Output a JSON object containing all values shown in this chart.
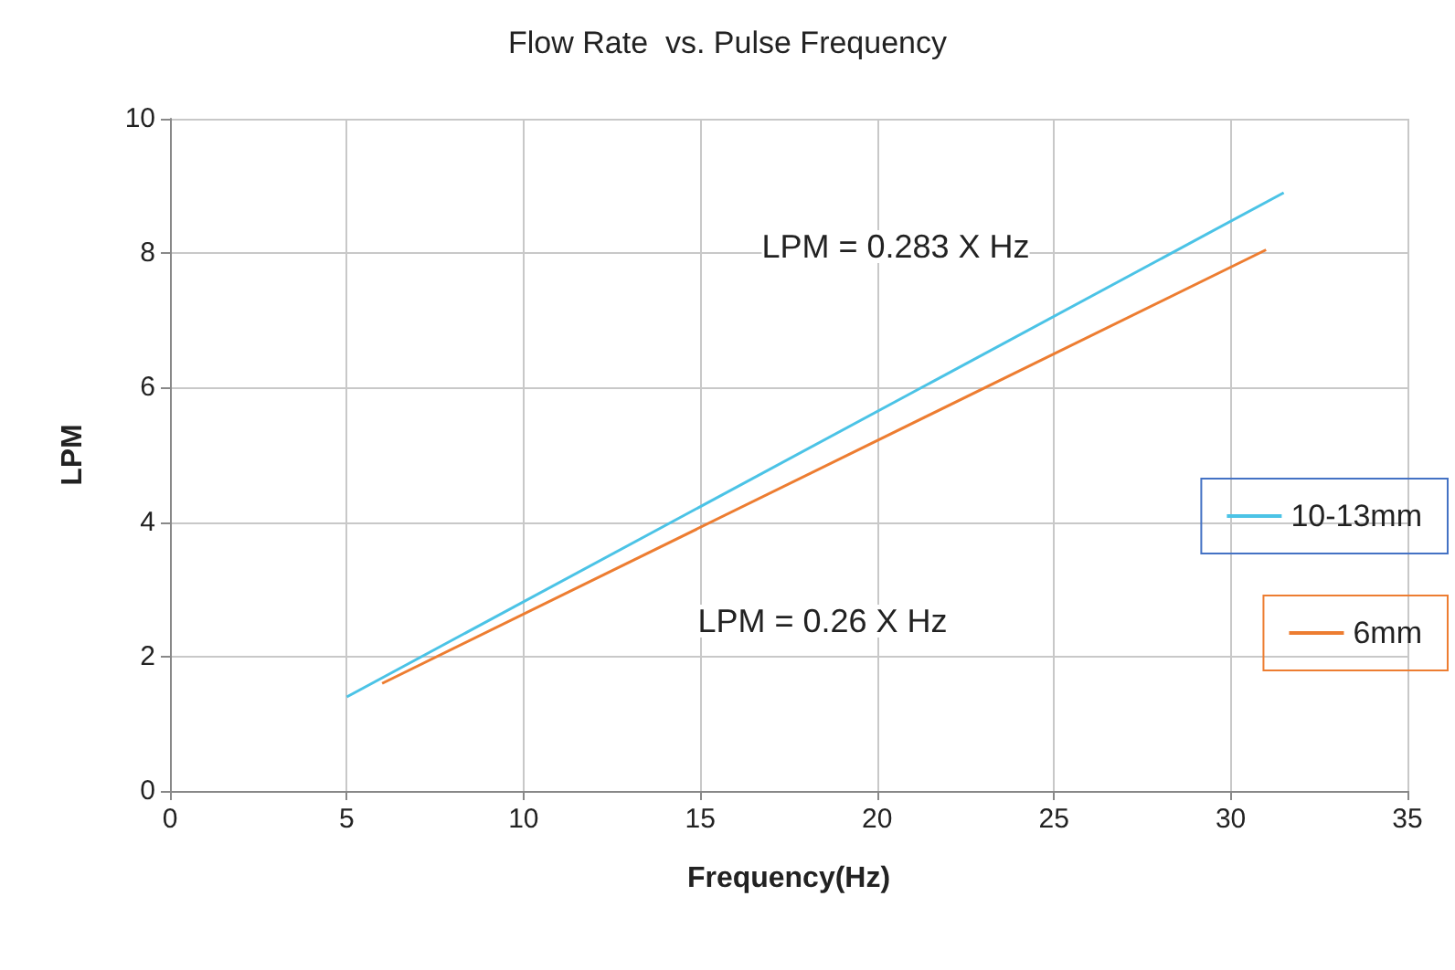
{
  "chart_data": {
    "type": "line",
    "title": "Flow Rate  vs. Pulse Frequency",
    "xlabel": "Frequency(Hz)",
    "ylabel": "LPM",
    "series": [
      {
        "name": "10-13mm",
        "color": "#4bc3e6",
        "x": [
          5,
          31.5
        ],
        "values": [
          1.4,
          8.9
        ]
      },
      {
        "name": "6mm",
        "color": "#ed7d31",
        "x": [
          6,
          31
        ],
        "values": [
          1.6,
          8.05
        ]
      }
    ],
    "annotations": [
      "LPM = 0.283 X Hz",
      "LPM = 0.26 X Hz"
    ],
    "xlim": [
      0,
      35
    ],
    "xticks": [
      0,
      5,
      10,
      15,
      20,
      25,
      30,
      35
    ],
    "ylim": [
      0,
      10
    ],
    "yticks": [
      0,
      2,
      4,
      6,
      8,
      10
    ],
    "grid": true,
    "legend": "right",
    "marker": "none",
    "line_style": "solid"
  }
}
